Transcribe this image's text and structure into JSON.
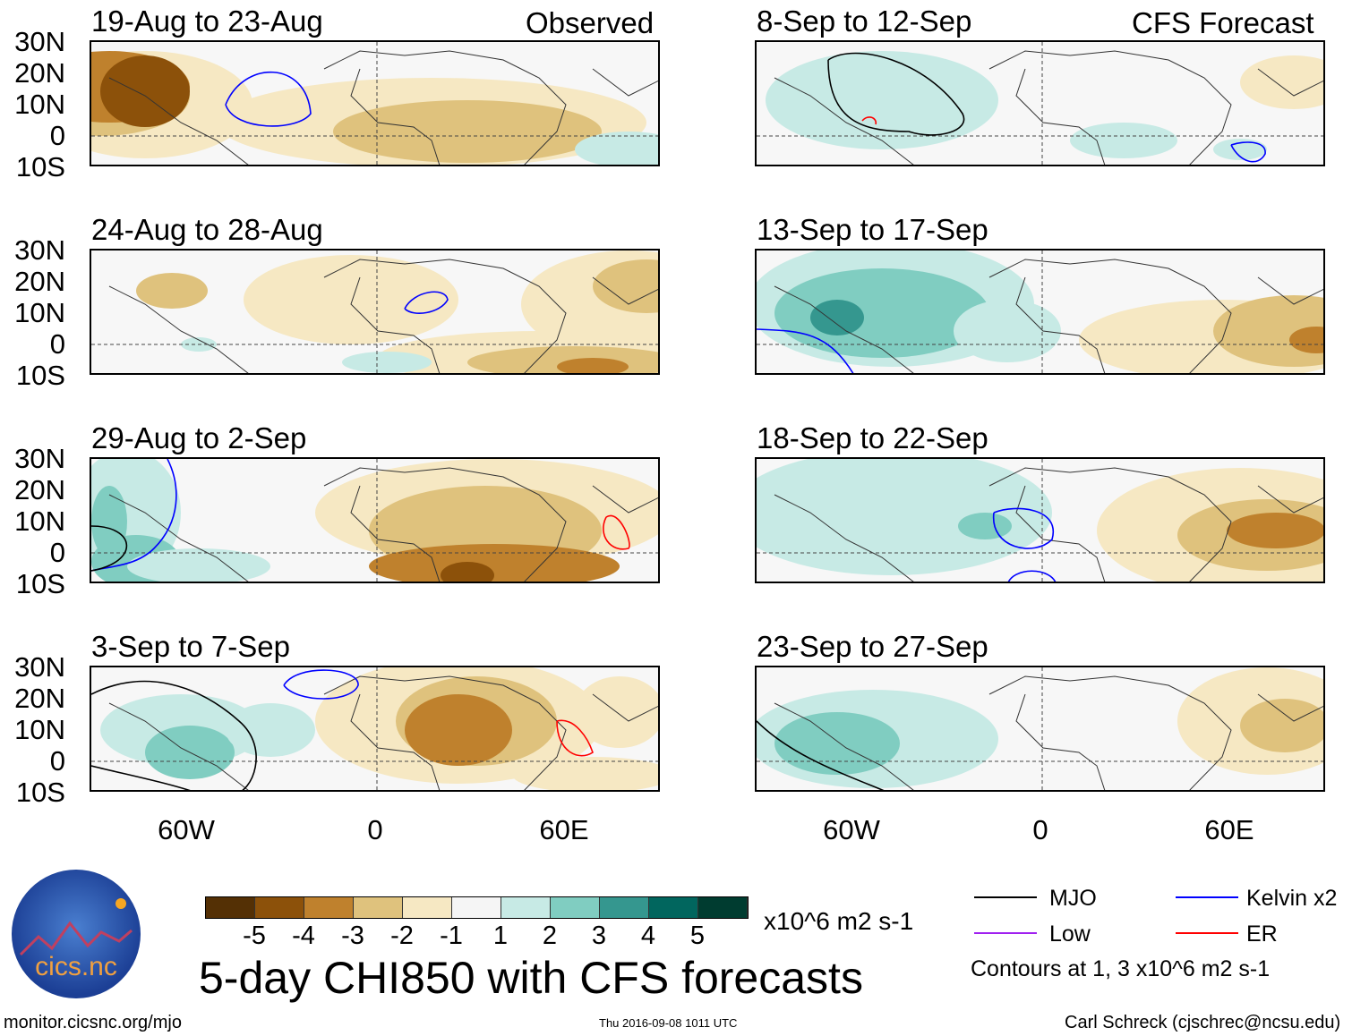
{
  "headers": {
    "left": "Observed",
    "right": "CFS Forecast"
  },
  "panels": [
    {
      "title": "19-Aug to 23-Aug",
      "side": "left"
    },
    {
      "title": "24-Aug to 28-Aug",
      "side": "left"
    },
    {
      "title": "29-Aug to 2-Sep",
      "side": "left"
    },
    {
      "title": "3-Sep to 7-Sep",
      "side": "left"
    },
    {
      "title": "8-Sep to 12-Sep",
      "side": "right"
    },
    {
      "title": "13-Sep to 17-Sep",
      "side": "right"
    },
    {
      "title": "18-Sep to 22-Sep",
      "side": "right"
    },
    {
      "title": "23-Sep to 27-Sep",
      "side": "right"
    }
  ],
  "lat_labels": [
    "30N",
    "20N",
    "10N",
    "0",
    "10S"
  ],
  "lon_labels": [
    "60W",
    "0",
    "60E"
  ],
  "colorbar": {
    "colors": [
      "#543005",
      "#8c510a",
      "#bf812d",
      "#dfc27d",
      "#f6e8c3",
      "#f5f5f5",
      "#c7eae5",
      "#80cdc1",
      "#35978f",
      "#01665e",
      "#003c30"
    ],
    "labels": [
      "-5",
      "-4",
      "-3",
      "-2",
      "-1",
      "1",
      "2",
      "3",
      "4",
      "5"
    ],
    "units": "x10^6 m2 s-1"
  },
  "title": "5-day CHI850 with CFS forecasts",
  "logo": "cics.nc",
  "url": "monitor.cicsnc.org/mjo",
  "timestamp": "Thu 2016-09-08 1011 UTC",
  "author": "Carl Schreck (cjschrec@ncsu.edu)",
  "legend": {
    "items": [
      {
        "label": "MJO",
        "color": "#000000"
      },
      {
        "label": "Kelvin x2",
        "color": "#0000ff"
      },
      {
        "label": "Low",
        "color": "#a020f0"
      },
      {
        "label": "ER",
        "color": "#ff0000"
      }
    ],
    "note": "Contours at 1, 3 x10^6 m2 s-1"
  }
}
